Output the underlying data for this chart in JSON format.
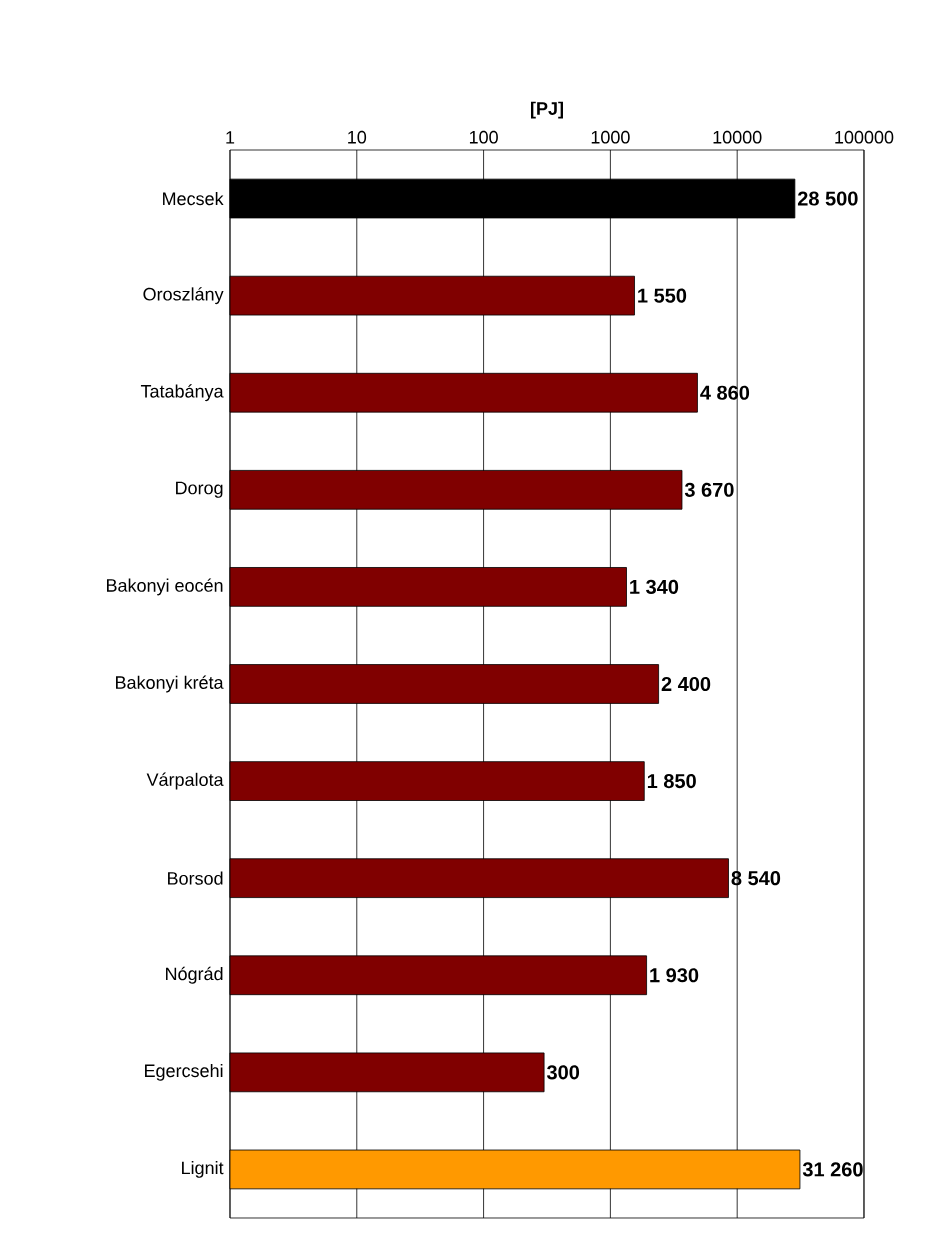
{
  "chart_data": {
    "type": "bar",
    "orientation": "horizontal",
    "xlabel": "[PJ]",
    "log": "x",
    "categories": [
      "Mecsek",
      "Oroszlány",
      "Tatabánya",
      "Dorog",
      "Bakonyi eocén",
      "Bakonyi kréta",
      "Várpalota",
      "Borsod",
      "Nógrád",
      "Egercsehi",
      "Lignit"
    ],
    "values": [
      28500,
      1550,
      4860,
      3670,
      1340,
      2400,
      1850,
      8540,
      1930,
      300,
      31260
    ],
    "value_labels": [
      "28 500",
      "1 550",
      "4 860",
      "3 670",
      "1 340",
      "2 400",
      "1 850",
      "8 540",
      "1 930",
      "300",
      "31 260"
    ],
    "colors": [
      "#000000",
      "#800000",
      "#800000",
      "#800000",
      "#800000",
      "#800000",
      "#800000",
      "#800000",
      "#800000",
      "#800000",
      "#ff9900"
    ],
    "xlim": [
      1,
      100000
    ],
    "xticks": [
      1,
      10,
      100,
      1000,
      10000,
      100000
    ],
    "grid": "x"
  }
}
